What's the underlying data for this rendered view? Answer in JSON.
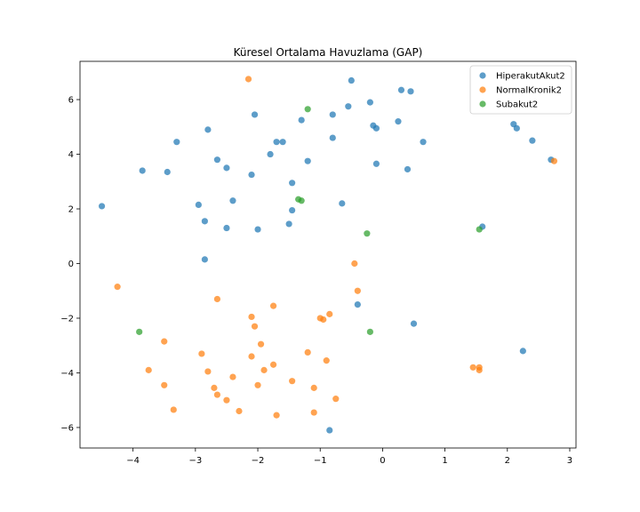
{
  "chart_data": {
    "type": "scatter",
    "title": "Küresel Ortalama Havuzlama (GAP)",
    "xlabel": "",
    "ylabel": "",
    "xlim": [
      -4.85,
      3.1
    ],
    "ylim": [
      -6.75,
      7.4
    ],
    "x_ticks": [
      -4,
      -3,
      -2,
      -1,
      0,
      1,
      2,
      3
    ],
    "y_ticks": [
      -6,
      -4,
      -2,
      0,
      2,
      4,
      6
    ],
    "x_tick_labels": [
      "−4",
      "−3",
      "−2",
      "−1",
      "0",
      "1",
      "2",
      "3"
    ],
    "y_tick_labels": [
      "−6",
      "−4",
      "−2",
      "0",
      "2",
      "4",
      "6"
    ],
    "grid": false,
    "legend": "top-right",
    "series": [
      {
        "name": "HiperakutAkut2",
        "color": "#1f77b4",
        "points": [
          [
            -4.5,
            2.1
          ],
          [
            -3.85,
            3.4
          ],
          [
            -3.45,
            3.35
          ],
          [
            -3.3,
            4.45
          ],
          [
            -2.95,
            2.15
          ],
          [
            -2.85,
            1.55
          ],
          [
            -2.8,
            4.9
          ],
          [
            -2.85,
            0.15
          ],
          [
            -2.65,
            3.8
          ],
          [
            -2.5,
            3.5
          ],
          [
            -2.5,
            1.3
          ],
          [
            -2.4,
            2.3
          ],
          [
            -2.1,
            3.25
          ],
          [
            -2.05,
            5.45
          ],
          [
            -2.0,
            1.25
          ],
          [
            -1.8,
            4.0
          ],
          [
            -1.7,
            4.45
          ],
          [
            -1.6,
            4.45
          ],
          [
            -1.5,
            1.45
          ],
          [
            -1.45,
            1.95
          ],
          [
            -1.45,
            2.95
          ],
          [
            -1.3,
            5.25
          ],
          [
            -1.2,
            3.75
          ],
          [
            -0.8,
            5.45
          ],
          [
            -0.8,
            4.6
          ],
          [
            -0.65,
            2.2
          ],
          [
            -0.55,
            5.75
          ],
          [
            -0.5,
            6.7
          ],
          [
            -0.4,
            -1.5
          ],
          [
            -0.2,
            5.9
          ],
          [
            -0.15,
            5.05
          ],
          [
            -0.1,
            3.65
          ],
          [
            -0.1,
            4.95
          ],
          [
            0.25,
            5.2
          ],
          [
            0.3,
            6.35
          ],
          [
            0.4,
            3.45
          ],
          [
            0.45,
            6.3
          ],
          [
            0.5,
            -2.2
          ],
          [
            0.65,
            4.45
          ],
          [
            1.6,
            1.35
          ],
          [
            2.1,
            5.1
          ],
          [
            2.15,
            4.95
          ],
          [
            2.25,
            -3.2
          ],
          [
            2.4,
            4.5
          ],
          [
            2.7,
            3.8
          ],
          [
            -0.85,
            -6.1
          ]
        ]
      },
      {
        "name": "NormalKronik2",
        "color": "#ff7f0e",
        "points": [
          [
            -4.25,
            -0.85
          ],
          [
            -3.75,
            -3.9
          ],
          [
            -3.5,
            -2.85
          ],
          [
            -3.5,
            -4.45
          ],
          [
            -3.35,
            -5.35
          ],
          [
            -2.9,
            -3.3
          ],
          [
            -2.8,
            -3.95
          ],
          [
            -2.7,
            -4.55
          ],
          [
            -2.65,
            -4.8
          ],
          [
            -2.65,
            -1.3
          ],
          [
            -2.5,
            -5.0
          ],
          [
            -2.4,
            -4.15
          ],
          [
            -2.3,
            -5.4
          ],
          [
            -2.15,
            6.75
          ],
          [
            -2.1,
            -1.95
          ],
          [
            -2.05,
            -2.3
          ],
          [
            -2.1,
            -3.4
          ],
          [
            -2.0,
            -4.45
          ],
          [
            -1.95,
            -2.95
          ],
          [
            -1.9,
            -3.9
          ],
          [
            -1.75,
            -3.7
          ],
          [
            -1.75,
            -1.55
          ],
          [
            -1.7,
            -5.55
          ],
          [
            -1.45,
            -4.3
          ],
          [
            -1.2,
            -3.25
          ],
          [
            -1.1,
            -5.45
          ],
          [
            -1.1,
            -4.55
          ],
          [
            -1.0,
            -2.0
          ],
          [
            -0.95,
            -2.05
          ],
          [
            -0.9,
            -3.55
          ],
          [
            -0.85,
            -1.85
          ],
          [
            -0.75,
            -4.95
          ],
          [
            -0.45,
            0.0
          ],
          [
            -0.4,
            -1.0
          ],
          [
            1.45,
            -3.8
          ],
          [
            1.55,
            -3.8
          ],
          [
            1.55,
            -3.9
          ],
          [
            2.75,
            3.75
          ]
        ]
      },
      {
        "name": "Subakut2",
        "color": "#2ca02c",
        "points": [
          [
            -3.9,
            -2.5
          ],
          [
            -1.35,
            2.35
          ],
          [
            -1.3,
            2.3
          ],
          [
            -1.2,
            5.65
          ],
          [
            -0.25,
            1.1
          ],
          [
            -0.2,
            -2.5
          ],
          [
            1.55,
            1.25
          ]
        ]
      }
    ]
  }
}
